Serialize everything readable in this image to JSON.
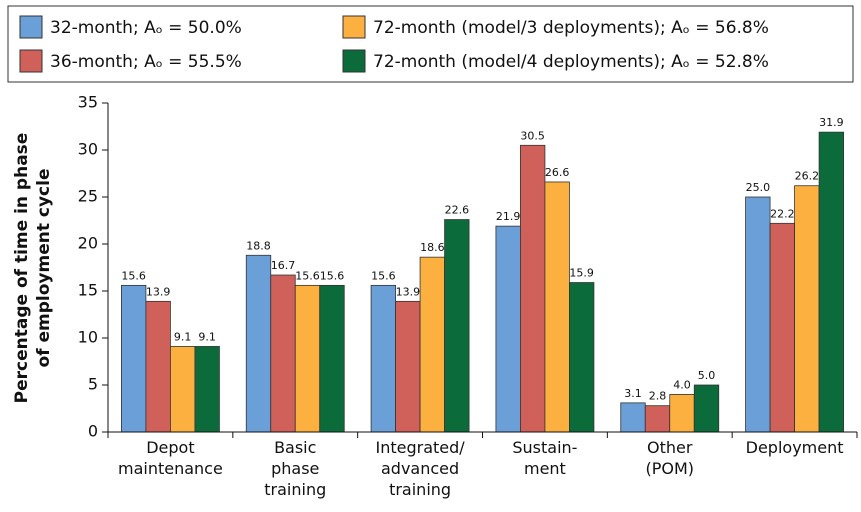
{
  "chart_data": {
    "type": "bar",
    "y_label": [
      "Percentage of time in phase",
      "of employment cycle"
    ],
    "categories": [
      "Depot\nmaintenance",
      "Basic\nphase\ntraining",
      "Integrated/\nadvanced\ntraining",
      "Sustain-\nment",
      "Other\n(POM)",
      "Deployment"
    ],
    "series": [
      {
        "name": "32-month; Aₒ = 50.0%",
        "color": "#6a9fd8",
        "values": [
          15.6,
          18.8,
          15.6,
          21.9,
          3.1,
          25.0
        ],
        "value_labels": [
          "15.6",
          "18.8",
          "15.6",
          "21.9",
          "3.1",
          "25.0"
        ]
      },
      {
        "name": "36-month; Aₒ = 55.5%",
        "color": "#d0605a",
        "values": [
          13.9,
          16.7,
          13.9,
          30.5,
          2.8,
          22.2
        ],
        "value_labels": [
          "13.9",
          "16.7",
          "13.9",
          "30.5",
          "2.8",
          "22.2"
        ]
      },
      {
        "name": "72-month (model/3 deployments); Aₒ = 56.8%",
        "color": "#fbb040",
        "values": [
          9.1,
          15.6,
          18.6,
          26.6,
          4.0,
          26.2
        ],
        "value_labels": [
          "9.1",
          "15.6",
          "18.6",
          "26.6",
          "4.0",
          "26.2"
        ]
      },
      {
        "name": "72-month (model/4 deployments); Aₒ = 52.8%",
        "color": "#0b6b3a",
        "values": [
          9.1,
          15.6,
          22.6,
          15.9,
          5.0,
          31.9
        ],
        "value_labels": [
          "9.1",
          "15.6",
          "22.6",
          "15.9",
          "5.0",
          "31.9"
        ]
      }
    ],
    "ylim": [
      0,
      35
    ],
    "yticks": [
      0,
      5,
      10,
      15,
      20,
      25,
      30,
      35
    ],
    "grid": false
  }
}
